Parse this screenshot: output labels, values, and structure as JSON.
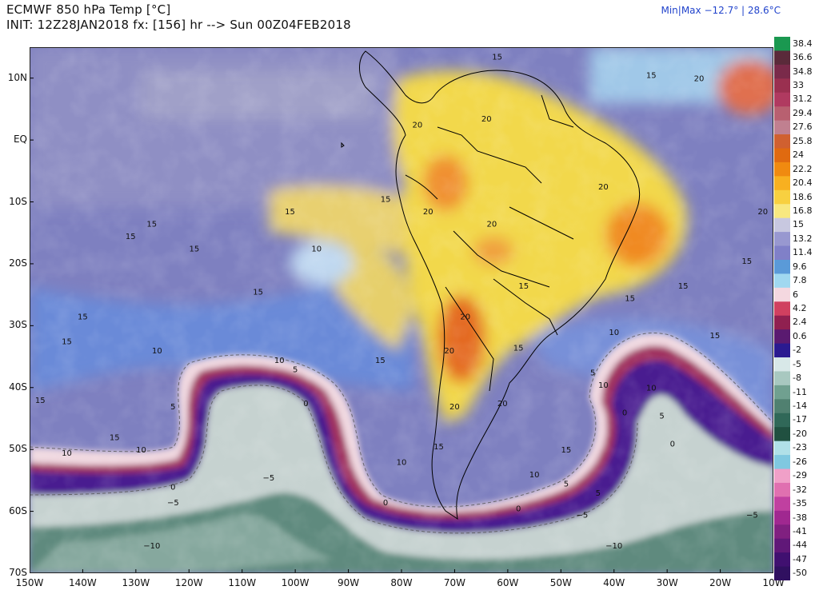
{
  "header": {
    "title": "ECMWF 850 hPa Temp [°C]",
    "init": "INIT: 12Z28JAN2018 fx: [156] hr --> Sun 00Z04FEB2018",
    "minmax": "Min|Max −12.7° | 28.6°C"
  },
  "axes": {
    "lat_labels": [
      "10N",
      "EQ",
      "10S",
      "20S",
      "30S",
      "40S",
      "50S",
      "60S",
      "70S"
    ],
    "lat_values": [
      10,
      0,
      -10,
      -20,
      -30,
      -40,
      -50,
      -60,
      -70
    ],
    "lon_labels": [
      "150W",
      "140W",
      "130W",
      "120W",
      "110W",
      "100W",
      "90W",
      "80W",
      "70W",
      "60W",
      "50W",
      "40W",
      "30W",
      "20W",
      "10W"
    ],
    "lon_values": [
      -150,
      -140,
      -130,
      -120,
      -110,
      -100,
      -90,
      -80,
      -70,
      -60,
      -50,
      -40,
      -30,
      -20,
      -10
    ],
    "lon_range": [
      -150,
      -10
    ],
    "lat_range": [
      -70,
      15
    ]
  },
  "colorbar": {
    "labels": [
      "38.4",
      "36.6",
      "34.8",
      "33",
      "31.2",
      "29.4",
      "27.6",
      "25.8",
      "24",
      "22.2",
      "20.4",
      "18.6",
      "16.8",
      "15",
      "13.2",
      "11.4",
      "9.6",
      "7.8",
      "6",
      "4.2",
      "2.4",
      "0.6",
      "-2",
      "-5",
      "-8",
      "-11",
      "-14",
      "-17",
      "-20",
      "-23",
      "-26",
      "-29",
      "-32",
      "-35",
      "-38",
      "-41",
      "-44",
      "-47",
      "-50"
    ],
    "colors": [
      "#1a9850",
      "#5a2a3a",
      "#7a2a4a",
      "#9a3050",
      "#b03a60",
      "#b86070",
      "#c08090",
      "#d06030",
      "#e06a10",
      "#f08a10",
      "#f8b020",
      "#f8d040",
      "#f8e880",
      "#c8c8e0",
      "#9898d0",
      "#8080c8",
      "#5a9ad8",
      "#a0d8f0",
      "#f4d8e0",
      "#d04060",
      "#902050",
      "#5a1a70",
      "#2a1a90",
      "#d8e8e8",
      "#a8c8c0",
      "#70a090",
      "#508070",
      "#306858",
      "#205040",
      "#b0e0e8",
      "#80c8e0",
      "#f0a0c8",
      "#e070b0",
      "#c040a0",
      "#a02890",
      "#802080",
      "#601878",
      "#401070",
      "#301060"
    ]
  },
  "contour_labels": [
    {
      "t": "15",
      "lon": -62,
      "lat": 13
    },
    {
      "t": "20",
      "lon": -24,
      "lat": 9.5
    },
    {
      "t": "15",
      "lon": -33,
      "lat": 10
    },
    {
      "t": "20",
      "lon": -77,
      "lat": 2
    },
    {
      "t": "20",
      "lon": -64,
      "lat": 3
    },
    {
      "t": "20",
      "lon": -42,
      "lat": -8
    },
    {
      "t": "20",
      "lon": -12,
      "lat": -12
    },
    {
      "t": "15",
      "lon": -83,
      "lat": -10
    },
    {
      "t": "15",
      "lon": -101,
      "lat": -12
    },
    {
      "t": "15",
      "lon": -127,
      "lat": -14
    },
    {
      "t": "15",
      "lon": -131,
      "lat": -16
    },
    {
      "t": "15",
      "lon": -119,
      "lat": -18
    },
    {
      "t": "10",
      "lon": -96,
      "lat": -18
    },
    {
      "t": "20",
      "lon": -75,
      "lat": -12
    },
    {
      "t": "20",
      "lon": -63,
      "lat": -14
    },
    {
      "t": "15",
      "lon": -107,
      "lat": -25
    },
    {
      "t": "15",
      "lon": -140,
      "lat": -29
    },
    {
      "t": "15",
      "lon": -57,
      "lat": -24
    },
    {
      "t": "15",
      "lon": -27,
      "lat": -24
    },
    {
      "t": "15",
      "lon": -15,
      "lat": -20
    },
    {
      "t": "15",
      "lon": -37,
      "lat": -26
    },
    {
      "t": "20",
      "lon": -68,
      "lat": -29
    },
    {
      "t": "10",
      "lon": -40,
      "lat": -31.5
    },
    {
      "t": "15",
      "lon": -21,
      "lat": -32
    },
    {
      "t": "15",
      "lon": -143,
      "lat": -33
    },
    {
      "t": "10",
      "lon": -126,
      "lat": -34.5
    },
    {
      "t": "15",
      "lon": -58,
      "lat": -34
    },
    {
      "t": "15",
      "lon": -84,
      "lat": -36
    },
    {
      "t": "20",
      "lon": -71,
      "lat": -34.5
    },
    {
      "t": "10",
      "lon": -103,
      "lat": -36
    },
    {
      "t": "5",
      "lon": -100,
      "lat": -37.5
    },
    {
      "t": "5",
      "lon": -44,
      "lat": -38
    },
    {
      "t": "10",
      "lon": -42,
      "lat": -40
    },
    {
      "t": "10",
      "lon": -33,
      "lat": -40.5
    },
    {
      "t": "15",
      "lon": -148,
      "lat": -42.5
    },
    {
      "t": "0",
      "lon": -98,
      "lat": -43
    },
    {
      "t": "5",
      "lon": -123,
      "lat": -43.5
    },
    {
      "t": "20",
      "lon": -70,
      "lat": -43.5
    },
    {
      "t": "20",
      "lon": -61,
      "lat": -43
    },
    {
      "t": "0",
      "lon": -38,
      "lat": -44.5
    },
    {
      "t": "5",
      "lon": -31,
      "lat": -45
    },
    {
      "t": "15",
      "lon": -134,
      "lat": -48.5
    },
    {
      "t": "0",
      "lon": -29,
      "lat": -49.5
    },
    {
      "t": "10",
      "lon": -129,
      "lat": -50.5
    },
    {
      "t": "10",
      "lon": -143,
      "lat": -51
    },
    {
      "t": "5",
      "lon": -156,
      "lat": -51
    },
    {
      "t": "15",
      "lon": -73,
      "lat": -50
    },
    {
      "t": "15",
      "lon": -49,
      "lat": -50.5
    },
    {
      "t": "10",
      "lon": -80,
      "lat": -52.5
    },
    {
      "t": "10",
      "lon": -55,
      "lat": -54.5
    },
    {
      "t": "−5",
      "lon": -105,
      "lat": -55
    },
    {
      "t": "5",
      "lon": -49,
      "lat": -56
    },
    {
      "t": "0",
      "lon": -123,
      "lat": -56.5
    },
    {
      "t": "5",
      "lon": -43,
      "lat": -57.5
    },
    {
      "t": "−5",
      "lon": -123,
      "lat": -59
    },
    {
      "t": "0",
      "lon": -83,
      "lat": -59
    },
    {
      "t": "0",
      "lon": -58,
      "lat": -60
    },
    {
      "t": "−5",
      "lon": -46,
      "lat": -61
    },
    {
      "t": "−5",
      "lon": -14,
      "lat": -61
    },
    {
      "t": "−10",
      "lon": -127,
      "lat": -66
    },
    {
      "t": "−10",
      "lon": -40,
      "lat": -66
    }
  ],
  "colors": {
    "title_text": "#111111",
    "minmax_text": "#2244cc"
  }
}
